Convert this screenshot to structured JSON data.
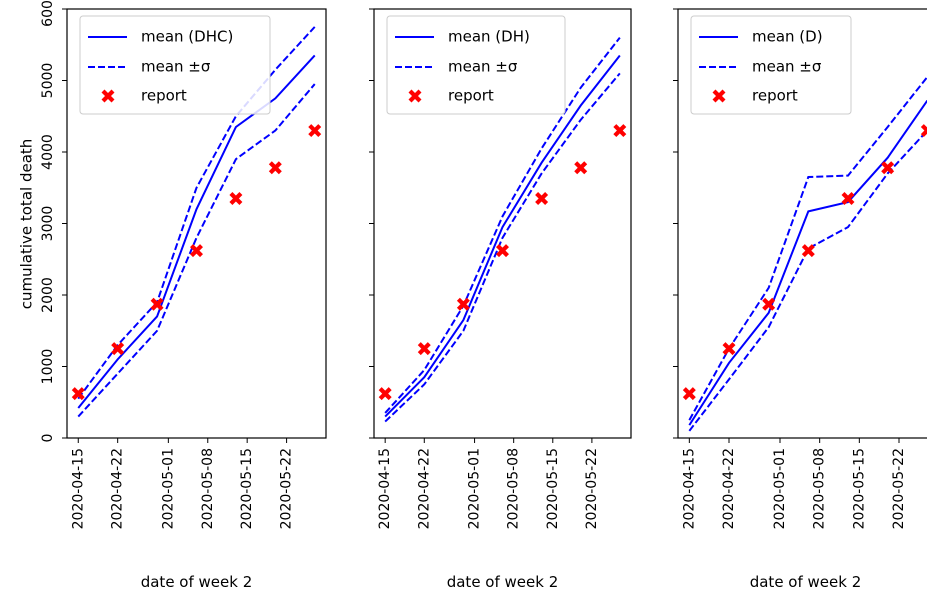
{
  "chart_data": [
    {
      "type": "line",
      "xlabel": "date of week 2",
      "ylabel": "cumulative total death",
      "ylim": [
        0,
        6000
      ],
      "y_ticks": [
        0,
        1000,
        2000,
        3000,
        4000,
        5000,
        6000
      ],
      "x_ticks": [
        "2020-04-15",
        "2020-04-22",
        "2020-05-01",
        "2020-05-08",
        "2020-05-15",
        "2020-05-22"
      ],
      "xlim": [
        "2020-04-13",
        "2020-05-29"
      ],
      "legend": [
        "mean (DHC)",
        "mean ±σ",
        "report"
      ],
      "legend_position": "upper-left",
      "series": [
        {
          "role": "mean",
          "style": "solid",
          "color": "#0000ff",
          "x": [
            "2020-04-15",
            "2020-04-22",
            "2020-04-29",
            "2020-05-06",
            "2020-05-13",
            "2020-05-20",
            "2020-05-27"
          ],
          "y": [
            420,
            1100,
            1700,
            3200,
            4350,
            4750,
            5350
          ]
        },
        {
          "role": "upper",
          "style": "dashed",
          "color": "#0000ff",
          "x": [
            "2020-04-15",
            "2020-04-22",
            "2020-04-29",
            "2020-05-06",
            "2020-05-13",
            "2020-05-20",
            "2020-05-27"
          ],
          "y": [
            550,
            1300,
            1900,
            3500,
            4500,
            5150,
            5750
          ]
        },
        {
          "role": "lower",
          "style": "dashed",
          "color": "#0000ff",
          "x": [
            "2020-04-15",
            "2020-04-22",
            "2020-04-29",
            "2020-05-06",
            "2020-05-13",
            "2020-05-20",
            "2020-05-27"
          ],
          "y": [
            300,
            900,
            1500,
            2800,
            3900,
            4300,
            4950
          ]
        },
        {
          "role": "report",
          "style": "marker",
          "color": "#ff0000",
          "x": [
            "2020-04-15",
            "2020-04-22",
            "2020-04-29",
            "2020-05-06",
            "2020-05-13",
            "2020-05-20",
            "2020-05-27"
          ],
          "y": [
            620,
            1250,
            1870,
            2620,
            3350,
            3780,
            4300
          ]
        }
      ]
    },
    {
      "type": "line",
      "xlabel": "date of week 2",
      "ylabel": "",
      "ylim": [
        0,
        6000
      ],
      "y_ticks": [
        0,
        1000,
        2000,
        3000,
        4000,
        5000,
        6000
      ],
      "x_ticks": [
        "2020-04-15",
        "2020-04-22",
        "2020-05-01",
        "2020-05-08",
        "2020-05-15",
        "2020-05-22"
      ],
      "xlim": [
        "2020-04-13",
        "2020-05-29"
      ],
      "legend": [
        "mean (DH)",
        "mean ±σ",
        "report"
      ],
      "legend_position": "upper-left",
      "series": [
        {
          "role": "mean",
          "style": "solid",
          "color": "#0000ff",
          "x": [
            "2020-04-15",
            "2020-04-22",
            "2020-04-29",
            "2020-05-06",
            "2020-05-13",
            "2020-05-20",
            "2020-05-27"
          ],
          "y": [
            300,
            850,
            1650,
            2950,
            3850,
            4650,
            5350
          ]
        },
        {
          "role": "upper",
          "style": "dashed",
          "color": "#0000ff",
          "x": [
            "2020-04-15",
            "2020-04-22",
            "2020-04-29",
            "2020-05-06",
            "2020-05-13",
            "2020-05-20",
            "2020-05-27"
          ],
          "y": [
            350,
            950,
            1850,
            3100,
            4050,
            4900,
            5600
          ]
        },
        {
          "role": "lower",
          "style": "dashed",
          "color": "#0000ff",
          "x": [
            "2020-04-15",
            "2020-04-22",
            "2020-04-29",
            "2020-05-06",
            "2020-05-13",
            "2020-05-20",
            "2020-05-27"
          ],
          "y": [
            230,
            750,
            1500,
            2800,
            3700,
            4450,
            5100
          ]
        },
        {
          "role": "report",
          "style": "marker",
          "color": "#ff0000",
          "x": [
            "2020-04-15",
            "2020-04-22",
            "2020-04-29",
            "2020-05-06",
            "2020-05-13",
            "2020-05-20",
            "2020-05-27"
          ],
          "y": [
            620,
            1250,
            1870,
            2620,
            3350,
            3780,
            4300
          ]
        }
      ]
    },
    {
      "type": "line",
      "xlabel": "date of week 2",
      "ylabel": "",
      "ylim": [
        0,
        6000
      ],
      "y_ticks": [
        0,
        1000,
        2000,
        3000,
        4000,
        5000,
        6000
      ],
      "x_ticks": [
        "2020-04-15",
        "2020-04-22",
        "2020-05-01",
        "2020-05-08",
        "2020-05-15",
        "2020-05-22"
      ],
      "xlim": [
        "2020-04-13",
        "2020-05-28"
      ],
      "legend": [
        "mean (D)",
        "mean ±σ",
        "report"
      ],
      "legend_position": "upper-left",
      "series": [
        {
          "role": "mean",
          "style": "solid",
          "color": "#0000ff",
          "x": [
            "2020-04-15",
            "2020-04-22",
            "2020-04-29",
            "2020-05-06",
            "2020-05-13",
            "2020-05-20",
            "2020-05-27"
          ],
          "y": [
            180,
            1050,
            1750,
            3170,
            3300,
            3920,
            4720
          ]
        },
        {
          "role": "upper",
          "style": "dashed",
          "color": "#0000ff",
          "x": [
            "2020-04-15",
            "2020-04-22",
            "2020-04-29",
            "2020-05-06",
            "2020-05-13",
            "2020-05-20",
            "2020-05-27"
          ],
          "y": [
            250,
            1250,
            2100,
            3650,
            3670,
            4350,
            5050
          ]
        },
        {
          "role": "lower",
          "style": "dashed",
          "color": "#0000ff",
          "x": [
            "2020-04-15",
            "2020-04-22",
            "2020-04-29",
            "2020-05-06",
            "2020-05-13",
            "2020-05-20",
            "2020-05-27"
          ],
          "y": [
            100,
            820,
            1550,
            2650,
            2950,
            3700,
            4300
          ]
        },
        {
          "role": "report",
          "style": "marker",
          "color": "#ff0000",
          "x": [
            "2020-04-15",
            "2020-04-22",
            "2020-04-29",
            "2020-05-06",
            "2020-05-13",
            "2020-05-20",
            "2020-05-27"
          ],
          "y": [
            620,
            1250,
            1870,
            2620,
            3350,
            3780,
            4300
          ]
        }
      ]
    }
  ]
}
